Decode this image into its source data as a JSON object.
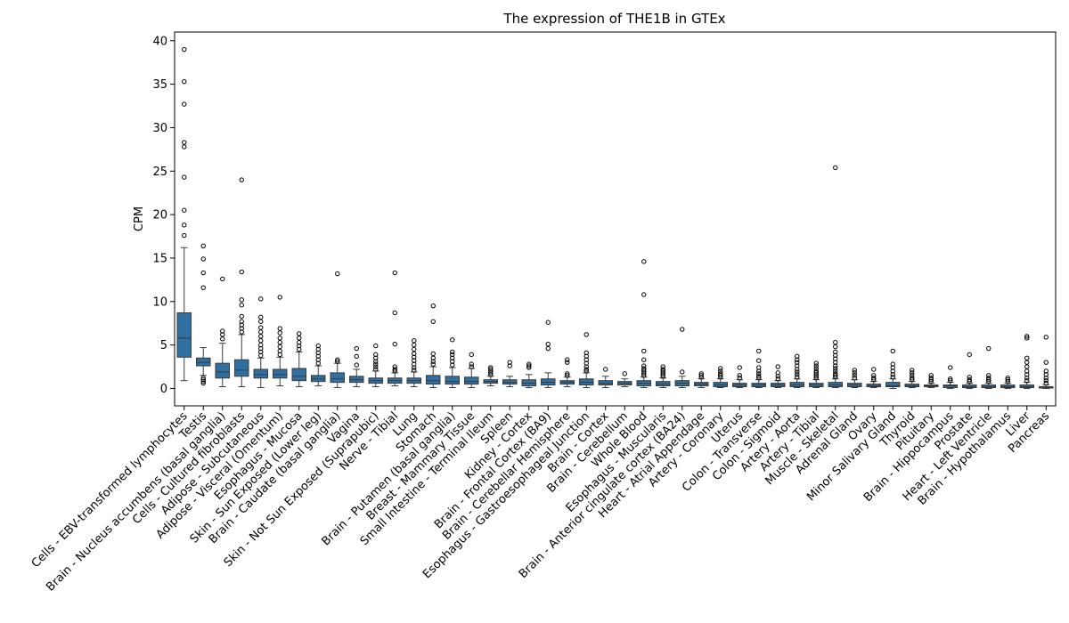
{
  "chart_data": {
    "type": "box",
    "title": "The expression of THE1B in GTEx",
    "xlabel": "",
    "ylabel": "CPM",
    "ylim": [
      -2,
      41
    ],
    "yticks": [
      0,
      5,
      10,
      15,
      20,
      25,
      30,
      35,
      40
    ],
    "box_color": "#2f6fa2",
    "grid": false,
    "categories": [
      "Cells - EBV-transformed lymphocytes",
      "Testis",
      "Brain - Nucleus accumbens (basal ganglia)",
      "Cells - Cultured fibroblasts",
      "Adipose - Subcutaneous",
      "Adipose - Visceral (Omentum)",
      "Esophagus - Mucosa",
      "Skin - Sun Exposed (Lower leg)",
      "Brain - Caudate (basal ganglia)",
      "Vagina",
      "Skin - Not Sun Exposed (Suprapubic)",
      "Nerve - Tibial",
      "Lung",
      "Stomach",
      "Brain - Putamen (basal ganglia)",
      "Breast - Mammary Tissue",
      "Small Intestine - Terminal Ileum",
      "Spleen",
      "Kidney - Cortex",
      "Brain - Frontal Cortex (BA9)",
      "Brain - Cerebellar Hemisphere",
      "Esophagus - Gastroesophageal Junction",
      "Brain - Cortex",
      "Brain - Cerebellum",
      "Whole Blood",
      "Esophagus - Muscularis",
      "Brain - Anterior cingulate cortex (BA24)",
      "Heart - Atrial Appendage",
      "Artery - Coronary",
      "Uterus",
      "Colon - Transverse",
      "Colon - Sigmoid",
      "Artery - Aorta",
      "Artery - Tibial",
      "Muscle - Skeletal",
      "Adrenal Gland",
      "Ovary",
      "Minor Salivary Gland",
      "Thyroid",
      "Pituitary",
      "Brain - Hippocampus",
      "Prostate",
      "Heart - Left Ventricle",
      "Brain - Hypothalamus",
      "Liver",
      "Pancreas"
    ],
    "boxes": [
      {
        "whislo": 0.9,
        "q1": 3.6,
        "med": 5.8,
        "q3": 8.7,
        "whishi": 16.2,
        "fliers": [
          17.6,
          18.8,
          20.5,
          24.3,
          27.8,
          28.3,
          32.7,
          35.3,
          39.0
        ]
      },
      {
        "whislo": 1.5,
        "q1": 2.6,
        "med": 3.0,
        "q3": 3.5,
        "whishi": 4.7,
        "fliers": [
          0.6,
          0.8,
          1.0,
          1.2,
          11.6,
          13.3,
          14.9,
          16.4
        ]
      },
      {
        "whislo": 0.2,
        "q1": 1.2,
        "med": 1.9,
        "q3": 2.9,
        "whishi": 5.2,
        "fliers": [
          5.7,
          6.2,
          6.6,
          12.6
        ]
      },
      {
        "whislo": 0.2,
        "q1": 1.4,
        "med": 2.1,
        "q3": 3.3,
        "whishi": 6.2,
        "fliers": [
          6.5,
          6.9,
          7.3,
          7.7,
          8.3,
          9.6,
          10.2,
          13.4,
          24.0
        ]
      },
      {
        "whislo": 0.1,
        "q1": 1.2,
        "med": 1.6,
        "q3": 2.2,
        "whishi": 3.5,
        "fliers": [
          3.8,
          4.2,
          4.6,
          5.0,
          5.5,
          6.0,
          6.5,
          7.0,
          7.7,
          8.2,
          10.3
        ]
      },
      {
        "whislo": 0.3,
        "q1": 1.2,
        "med": 1.6,
        "q3": 2.2,
        "whishi": 3.6,
        "fliers": [
          3.9,
          4.3,
          4.8,
          5.3,
          5.8,
          6.4,
          6.9,
          10.5
        ]
      },
      {
        "whislo": 0.2,
        "q1": 0.9,
        "med": 1.4,
        "q3": 2.3,
        "whishi": 4.2,
        "fliers": [
          4.5,
          4.9,
          5.3,
          5.8,
          6.3
        ]
      },
      {
        "whislo": 0.3,
        "q1": 0.8,
        "med": 1.1,
        "q3": 1.5,
        "whishi": 2.6,
        "fliers": [
          2.9,
          3.3,
          3.7,
          4.1,
          4.5,
          4.9
        ]
      },
      {
        "whislo": 0.1,
        "q1": 0.7,
        "med": 1.1,
        "q3": 1.8,
        "whishi": 2.9,
        "fliers": [
          3.1,
          3.3,
          13.2
        ]
      },
      {
        "whislo": 0.2,
        "q1": 0.7,
        "med": 1.0,
        "q3": 1.4,
        "whishi": 2.2,
        "fliers": [
          2.7,
          3.7,
          4.6
        ]
      },
      {
        "whislo": 0.2,
        "q1": 0.6,
        "med": 0.9,
        "q3": 1.2,
        "whishi": 2.0,
        "fliers": [
          2.2,
          2.5,
          2.8,
          3.1,
          3.5,
          3.9,
          4.9
        ]
      },
      {
        "whislo": 0.3,
        "q1": 0.6,
        "med": 0.9,
        "q3": 1.2,
        "whishi": 1.8,
        "fliers": [
          2.0,
          2.2,
          2.5,
          5.1,
          8.7,
          13.3
        ]
      },
      {
        "whislo": 0.2,
        "q1": 0.6,
        "med": 0.9,
        "q3": 1.2,
        "whishi": 1.9,
        "fliers": [
          2.1,
          2.4,
          2.8,
          3.2,
          3.6,
          4.0,
          4.5,
          5.0,
          5.5
        ]
      },
      {
        "whislo": 0.1,
        "q1": 0.5,
        "med": 0.9,
        "q3": 1.5,
        "whishi": 2.5,
        "fliers": [
          2.8,
          3.1,
          3.5,
          4.0,
          7.7,
          9.5
        ]
      },
      {
        "whislo": 0.1,
        "q1": 0.5,
        "med": 0.8,
        "q3": 1.4,
        "whishi": 2.4,
        "fliers": [
          2.7,
          3.1,
          3.5,
          3.9,
          4.2,
          5.6
        ]
      },
      {
        "whislo": 0.1,
        "q1": 0.5,
        "med": 0.8,
        "q3": 1.3,
        "whishi": 2.3,
        "fliers": [
          2.5,
          2.8,
          3.9
        ]
      },
      {
        "whislo": 0.3,
        "q1": 0.6,
        "med": 0.8,
        "q3": 1.0,
        "whishi": 1.4,
        "fliers": [
          1.6,
          1.8,
          2.0,
          2.2,
          2.4
        ]
      },
      {
        "whislo": 0.2,
        "q1": 0.5,
        "med": 0.7,
        "q3": 1.0,
        "whishi": 1.4,
        "fliers": [
          2.6,
          3.0
        ]
      },
      {
        "whislo": 0.1,
        "q1": 0.3,
        "med": 0.6,
        "q3": 1.0,
        "whishi": 1.6,
        "fliers": [
          2.4,
          2.6,
          2.8
        ]
      },
      {
        "whislo": 0.1,
        "q1": 0.4,
        "med": 0.7,
        "q3": 1.1,
        "whishi": 1.8,
        "fliers": [
          4.6,
          5.1,
          7.6
        ]
      },
      {
        "whislo": 0.2,
        "q1": 0.5,
        "med": 0.7,
        "q3": 0.9,
        "whishi": 1.3,
        "fliers": [
          1.5,
          1.7,
          3.0,
          3.3
        ]
      },
      {
        "whislo": 0.1,
        "q1": 0.4,
        "med": 0.7,
        "q3": 1.1,
        "whishi": 1.8,
        "fliers": [
          2.0,
          2.2,
          2.5,
          2.9,
          3.3,
          3.7,
          4.1,
          6.2
        ]
      },
      {
        "whislo": 0.1,
        "q1": 0.4,
        "med": 0.6,
        "q3": 0.9,
        "whishi": 1.4,
        "fliers": [
          2.2
        ]
      },
      {
        "whislo": 0.2,
        "q1": 0.4,
        "med": 0.6,
        "q3": 0.8,
        "whishi": 1.1,
        "fliers": [
          1.7
        ]
      },
      {
        "whislo": 0.1,
        "q1": 0.3,
        "med": 0.6,
        "q3": 0.9,
        "whishi": 1.3,
        "fliers": [
          1.5,
          1.7,
          1.9,
          2.1,
          2.3,
          2.6,
          3.3,
          4.3,
          10.8,
          14.6
        ]
      },
      {
        "whislo": 0.1,
        "q1": 0.3,
        "med": 0.5,
        "q3": 0.8,
        "whishi": 1.2,
        "fliers": [
          1.4,
          1.6,
          1.8,
          2.0,
          2.2,
          2.5
        ]
      },
      {
        "whislo": 0.1,
        "q1": 0.3,
        "med": 0.6,
        "q3": 0.9,
        "whishi": 1.4,
        "fliers": [
          1.9,
          6.8
        ]
      },
      {
        "whislo": 0.1,
        "q1": 0.3,
        "med": 0.5,
        "q3": 0.7,
        "whishi": 1.1,
        "fliers": [
          1.3,
          1.5,
          1.7
        ]
      },
      {
        "whislo": 0.1,
        "q1": 0.2,
        "med": 0.4,
        "q3": 0.7,
        "whishi": 1.1,
        "fliers": [
          1.3,
          1.5,
          1.7,
          2.0,
          2.3
        ]
      },
      {
        "whislo": 0.1,
        "q1": 0.2,
        "med": 0.4,
        "q3": 0.6,
        "whishi": 1.0,
        "fliers": [
          1.2,
          1.5,
          2.4
        ]
      },
      {
        "whislo": 0.1,
        "q1": 0.2,
        "med": 0.4,
        "q3": 0.6,
        "whishi": 1.0,
        "fliers": [
          1.2,
          1.4,
          1.7,
          2.0,
          2.4,
          3.2,
          4.3
        ]
      },
      {
        "whislo": 0.1,
        "q1": 0.2,
        "med": 0.4,
        "q3": 0.6,
        "whishi": 0.9,
        "fliers": [
          1.1,
          1.4,
          1.8,
          2.5
        ]
      },
      {
        "whislo": 0.1,
        "q1": 0.2,
        "med": 0.4,
        "q3": 0.7,
        "whishi": 1.1,
        "fliers": [
          1.3,
          1.6,
          1.9,
          2.2,
          2.6,
          3.0,
          3.3,
          3.7
        ]
      },
      {
        "whislo": 0.1,
        "q1": 0.2,
        "med": 0.4,
        "q3": 0.6,
        "whishi": 1.0,
        "fliers": [
          1.2,
          1.4,
          1.6,
          1.8,
          2.0,
          2.3,
          2.6,
          2.9
        ]
      },
      {
        "whislo": 0.1,
        "q1": 0.2,
        "med": 0.4,
        "q3": 0.7,
        "whishi": 1.1,
        "fliers": [
          1.3,
          1.5,
          1.7,
          2.0,
          2.3,
          2.6,
          3.0,
          3.4,
          3.8,
          4.2,
          4.8,
          5.3,
          25.4
        ]
      },
      {
        "whislo": 0.1,
        "q1": 0.2,
        "med": 0.4,
        "q3": 0.6,
        "whishi": 1.0,
        "fliers": [
          1.2,
          1.5,
          1.8,
          2.1
        ]
      },
      {
        "whislo": 0.1,
        "q1": 0.2,
        "med": 0.3,
        "q3": 0.5,
        "whishi": 0.8,
        "fliers": [
          1.0,
          1.2,
          1.5,
          2.2
        ]
      },
      {
        "whislo": 0.0,
        "q1": 0.2,
        "med": 0.3,
        "q3": 0.7,
        "whishi": 1.1,
        "fliers": [
          1.3,
          1.6,
          2.0,
          2.4,
          2.8,
          4.3
        ]
      },
      {
        "whislo": 0.1,
        "q1": 0.2,
        "med": 0.3,
        "q3": 0.5,
        "whishi": 0.8,
        "fliers": [
          1.0,
          1.2,
          1.5,
          1.8,
          2.1
        ]
      },
      {
        "whislo": 0.1,
        "q1": 0.2,
        "med": 0.3,
        "q3": 0.4,
        "whishi": 0.6,
        "fliers": [
          0.8,
          1.0,
          1.2,
          1.5
        ]
      },
      {
        "whislo": 0.0,
        "q1": 0.1,
        "med": 0.3,
        "q3": 0.4,
        "whishi": 0.7,
        "fliers": [
          0.9,
          1.1,
          2.4
        ]
      },
      {
        "whislo": 0.0,
        "q1": 0.1,
        "med": 0.2,
        "q3": 0.4,
        "whishi": 0.6,
        "fliers": [
          0.8,
          1.0,
          1.3,
          3.9
        ]
      },
      {
        "whislo": 0.0,
        "q1": 0.1,
        "med": 0.2,
        "q3": 0.4,
        "whishi": 0.6,
        "fliers": [
          0.8,
          1.0,
          1.2,
          1.5,
          4.6
        ]
      },
      {
        "whislo": 0.0,
        "q1": 0.1,
        "med": 0.2,
        "q3": 0.4,
        "whishi": 0.6,
        "fliers": [
          0.8,
          1.0,
          1.2
        ]
      },
      {
        "whislo": 0.0,
        "q1": 0.1,
        "med": 0.2,
        "q3": 0.4,
        "whishi": 0.7,
        "fliers": [
          0.9,
          1.2,
          1.6,
          2.0,
          2.5,
          3.0,
          3.5,
          5.8,
          6.0
        ]
      },
      {
        "whislo": 0.0,
        "q1": 0.05,
        "med": 0.1,
        "q3": 0.2,
        "whishi": 0.4,
        "fliers": [
          0.6,
          0.9,
          1.2,
          1.6,
          2.0,
          3.0,
          5.9
        ]
      }
    ]
  }
}
